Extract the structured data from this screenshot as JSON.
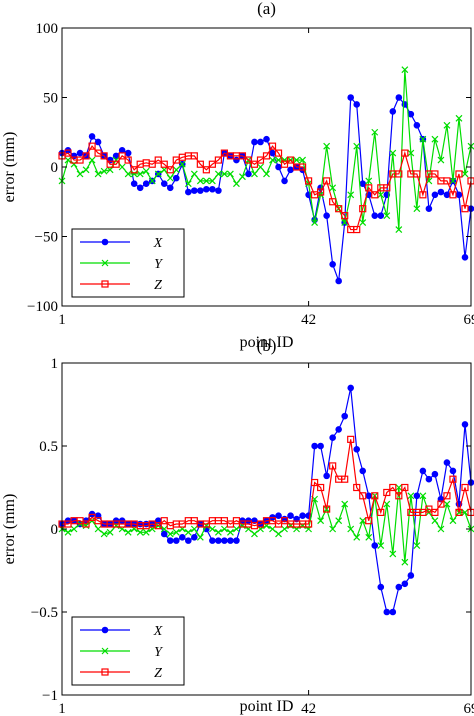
{
  "colors": {
    "X": "#0000ff",
    "Y": "#00dd00",
    "Z": "#ff0000"
  },
  "chart_data": [
    {
      "type": "line",
      "title": "(a)",
      "xlabel": "point ID",
      "ylabel": "error (mm)",
      "xlim": [
        1,
        69
      ],
      "ylim": [
        -100,
        100
      ],
      "xticks": [
        1,
        42,
        69
      ],
      "yticks": [
        -100,
        -50,
        0,
        50,
        100
      ],
      "ytick_labels": [
        "−100",
        "−50",
        "0",
        "50",
        "100"
      ],
      "legend_position": "lower-left",
      "series": [
        {
          "name": "X",
          "marker": "dot",
          "values": [
            10,
            12,
            8,
            10,
            8,
            22,
            18,
            8,
            5,
            8,
            12,
            10,
            -12,
            -15,
            -12,
            -10,
            -5,
            -12,
            -15,
            -8,
            2,
            -18,
            -17,
            -17,
            -16,
            -16,
            -17,
            10,
            8,
            5,
            8,
            -5,
            18,
            18,
            20,
            10,
            0,
            -10,
            -2,
            0,
            -2,
            -20,
            -38,
            -15,
            -35,
            -70,
            -82,
            -40,
            50,
            45,
            -12,
            -20,
            -35,
            -35,
            -20,
            40,
            50,
            45,
            38,
            30,
            20,
            -30,
            -20,
            -18,
            -20,
            -10,
            -20,
            -65,
            -30
          ]
        },
        {
          "name": "Y",
          "marker": "x",
          "values": [
            -10,
            5,
            2,
            -5,
            -2,
            5,
            -5,
            -3,
            -2,
            5,
            0,
            -5,
            -5,
            -5,
            -3,
            -10,
            -5,
            -2,
            -8,
            -2,
            2,
            -12,
            -5,
            -10,
            -10,
            -10,
            -5,
            -5,
            -5,
            -12,
            -7,
            5,
            -5,
            0,
            -5,
            5,
            5,
            5,
            5,
            5,
            5,
            -12,
            -40,
            -20,
            15,
            -15,
            -30,
            -40,
            -20,
            15,
            -40,
            -10,
            25,
            -20,
            -35,
            10,
            -45,
            70,
            10,
            -30,
            20,
            -10,
            20,
            5,
            30,
            -10,
            35,
            -5,
            15
          ]
        },
        {
          "name": "Z",
          "marker": "square",
          "values": [
            8,
            10,
            5,
            5,
            8,
            15,
            10,
            8,
            2,
            2,
            8,
            5,
            -2,
            2,
            3,
            2,
            5,
            2,
            -2,
            5,
            7,
            8,
            8,
            2,
            -2,
            2,
            5,
            10,
            8,
            8,
            8,
            5,
            2,
            5,
            8,
            15,
            10,
            2,
            5,
            0,
            0,
            -10,
            -20,
            -18,
            -10,
            -25,
            -30,
            -35,
            -45,
            -45,
            -30,
            -15,
            -20,
            -15,
            -15,
            -5,
            -5,
            10,
            -5,
            -5,
            -20,
            -5,
            -5,
            -10,
            -10,
            -20,
            -5,
            -30,
            -10
          ]
        }
      ]
    },
    {
      "type": "line",
      "title": "(b)",
      "xlabel": "point ID",
      "ylabel": "error (mm)",
      "xlim": [
        1,
        69
      ],
      "ylim": [
        -1,
        1
      ],
      "xticks": [
        1,
        42,
        69
      ],
      "yticks": [
        -1,
        -0.5,
        0,
        0.5,
        1
      ],
      "ytick_labels": [
        "−1",
        "−0.5",
        "0",
        "0.5",
        "1"
      ],
      "legend_position": "lower-left",
      "series": [
        {
          "name": "X",
          "marker": "dot",
          "values": [
            0.03,
            0.05,
            0.05,
            0.03,
            0.05,
            0.09,
            0.08,
            0.03,
            0.03,
            0.05,
            0.05,
            0.03,
            0.03,
            0.03,
            0.03,
            0.03,
            0.05,
            -0.03,
            -0.07,
            -0.07,
            -0.05,
            -0.07,
            -0.05,
            0.03,
            0.0,
            -0.07,
            -0.07,
            -0.07,
            -0.07,
            -0.07,
            0.05,
            0.05,
            0.05,
            0.03,
            0.05,
            0.07,
            0.08,
            0.06,
            0.08,
            0.06,
            0.08,
            0.08,
            0.5,
            0.5,
            0.32,
            0.55,
            0.6,
            0.68,
            0.85,
            0.48,
            0.35,
            0.2,
            -0.1,
            -0.35,
            -0.5,
            -0.5,
            -0.35,
            -0.33,
            -0.28,
            0.2,
            0.35,
            0.3,
            0.33,
            0.18,
            0.4,
            0.35,
            0.15,
            0.63,
            0.28
          ]
        },
        {
          "name": "Y",
          "marker": "x",
          "values": [
            0.0,
            -0.02,
            0.0,
            0.03,
            0.02,
            0.05,
            0.0,
            -0.03,
            -0.02,
            0.02,
            0.0,
            -0.02,
            0.0,
            -0.02,
            -0.02,
            0.0,
            0.02,
            0.0,
            -0.03,
            -0.02,
            0.0,
            -0.02,
            0.0,
            -0.05,
            0.02,
            0.0,
            -0.02,
            0.0,
            -0.02,
            0.0,
            0.02,
            0.0,
            -0.03,
            0.0,
            0.02,
            0.0,
            -0.03,
            0.0,
            0.02,
            0.0,
            0.02,
            0.0,
            0.18,
            0.05,
            0.12,
            0.0,
            0.05,
            0.15,
            0.0,
            -0.05,
            0.05,
            -0.05,
            0.2,
            -0.1,
            0.15,
            -0.15,
            0.25,
            -0.2,
            0.2,
            -0.1,
            0.2,
            0.1,
            0.05,
            0.0,
            0.15,
            0.05,
            0.1,
            0.1,
            0.0
          ]
        },
        {
          "name": "Z",
          "marker": "square",
          "values": [
            0.03,
            0.03,
            0.05,
            0.05,
            0.03,
            0.07,
            0.05,
            0.03,
            0.03,
            0.03,
            0.03,
            0.03,
            0.03,
            0.02,
            0.02,
            0.03,
            0.02,
            0.05,
            0.02,
            0.03,
            0.03,
            0.05,
            0.05,
            0.03,
            0.03,
            0.05,
            0.05,
            0.05,
            0.03,
            0.05,
            0.03,
            0.03,
            0.02,
            0.03,
            0.05,
            0.05,
            0.03,
            0.05,
            0.03,
            0.03,
            0.03,
            0.03,
            0.28,
            0.25,
            0.12,
            0.38,
            0.3,
            0.3,
            0.54,
            0.25,
            0.2,
            0.05,
            0.2,
            0.1,
            0.22,
            0.25,
            0.2,
            0.25,
            0.1,
            0.1,
            0.1,
            0.12,
            0.1,
            0.15,
            0.2,
            0.3,
            0.1,
            0.25,
            0.1
          ]
        }
      ]
    }
  ]
}
